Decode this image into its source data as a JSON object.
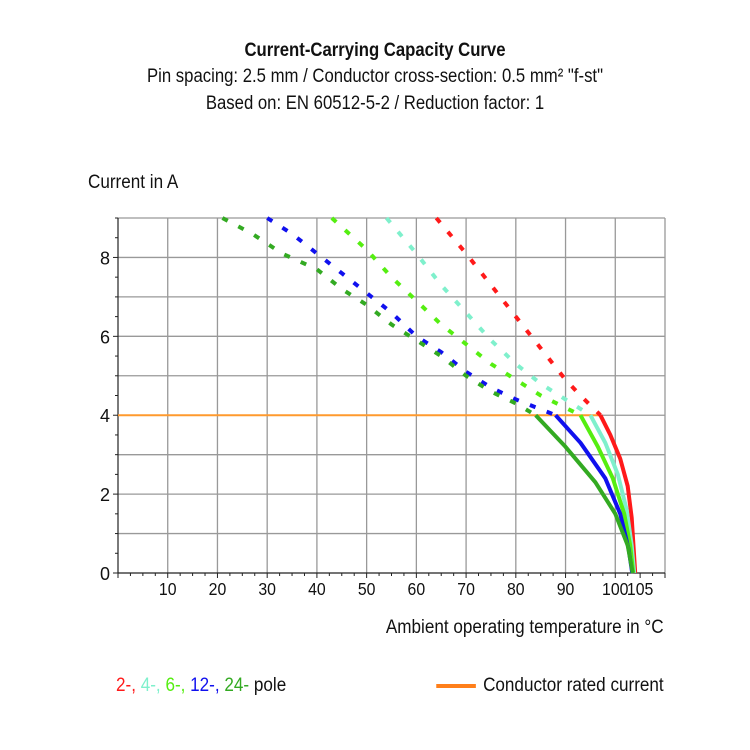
{
  "chart_data": {
    "type": "line",
    "title": "Current-Carrying Capacity Curve",
    "subtitle": [
      "Pin spacing: 2.5 mm / Conductor cross-section: 0.5 mm² \"f-st\"",
      "Based on: EN 60512-5-2 / Reduction factor: 1"
    ],
    "xlabel": "Ambient operating temperature in °C",
    "ylabel": "Current in A",
    "xlim": [
      0,
      110
    ],
    "ylim": [
      0,
      9
    ],
    "xticks": [
      10,
      20,
      30,
      40,
      50,
      60,
      70,
      80,
      90,
      100,
      105
    ],
    "yticks": [
      0,
      2,
      4,
      6,
      8
    ],
    "grid": true,
    "legend_placement": "bottom",
    "series": [
      {
        "pole": "2-",
        "color": "#ff1a1a",
        "dashed": [
          [
            64,
            9
          ],
          [
            70,
            8.1
          ],
          [
            75,
            7.3
          ],
          [
            80,
            6.5
          ],
          [
            85,
            5.7
          ],
          [
            90,
            4.9
          ],
          [
            93,
            4.5
          ],
          [
            97,
            4
          ]
        ],
        "solid": [
          [
            97,
            4
          ],
          [
            99,
            3.5
          ],
          [
            101,
            2.9
          ],
          [
            102.5,
            2.2
          ],
          [
            103.3,
            1.4
          ],
          [
            103.7,
            0.6
          ],
          [
            104,
            0
          ]
        ]
      },
      {
        "pole": "4-",
        "color": "#7ff0cc",
        "dashed": [
          [
            54,
            9
          ],
          [
            60,
            8.1
          ],
          [
            65,
            7.3
          ],
          [
            70,
            6.6
          ],
          [
            75,
            5.9
          ],
          [
            80,
            5.3
          ],
          [
            85,
            4.8
          ],
          [
            90,
            4.4
          ],
          [
            95,
            4
          ]
        ],
        "solid": [
          [
            95,
            4
          ],
          [
            98,
            3.3
          ],
          [
            100.5,
            2.5
          ],
          [
            102.3,
            1.6
          ],
          [
            103.3,
            0.7
          ],
          [
            103.8,
            0
          ]
        ]
      },
      {
        "pole": "6-",
        "color": "#55ee11",
        "dashed": [
          [
            43,
            9
          ],
          [
            50,
            8.2
          ],
          [
            55,
            7.5
          ],
          [
            60,
            6.9
          ],
          [
            65,
            6.3
          ],
          [
            70,
            5.8
          ],
          [
            75,
            5.3
          ],
          [
            80,
            4.9
          ],
          [
            85,
            4.5
          ],
          [
            93,
            4
          ]
        ],
        "solid": [
          [
            93,
            4
          ],
          [
            96.5,
            3.2
          ],
          [
            99.5,
            2.4
          ],
          [
            101.8,
            1.5
          ],
          [
            103,
            0.7
          ],
          [
            103.6,
            0
          ]
        ]
      },
      {
        "pole": "12-",
        "color": "#1010ee",
        "dashed": [
          [
            30,
            9
          ],
          [
            35,
            8.6
          ],
          [
            40,
            8.1
          ],
          [
            45,
            7.6
          ],
          [
            50,
            7.1
          ],
          [
            55,
            6.6
          ],
          [
            60,
            6.0
          ],
          [
            65,
            5.6
          ],
          [
            70,
            5.1
          ],
          [
            75,
            4.7
          ],
          [
            80,
            4.4
          ],
          [
            88,
            4
          ]
        ],
        "solid": [
          [
            88,
            4
          ],
          [
            93,
            3.3
          ],
          [
            98,
            2.4
          ],
          [
            101,
            1.5
          ],
          [
            102.7,
            0.6
          ],
          [
            103.4,
            0
          ]
        ]
      },
      {
        "pole": "24-",
        "color": "#33aa22",
        "dashed": [
          [
            21,
            9
          ],
          [
            27,
            8.6
          ],
          [
            33,
            8.1
          ],
          [
            40,
            7.7
          ],
          [
            45,
            7.2
          ],
          [
            50,
            6.8
          ],
          [
            55,
            6.3
          ],
          [
            60,
            5.9
          ],
          [
            65,
            5.5
          ],
          [
            70,
            5.0
          ],
          [
            75,
            4.6
          ],
          [
            80,
            4.3
          ],
          [
            84,
            4
          ]
        ],
        "solid": [
          [
            84,
            4
          ],
          [
            90,
            3.2
          ],
          [
            96,
            2.3
          ],
          [
            100,
            1.5
          ],
          [
            102.5,
            0.7
          ],
          [
            103.5,
            0
          ]
        ]
      }
    ],
    "rated_current": {
      "label": "Conductor rated current",
      "color": "#ff9a2e",
      "value": 4,
      "x_range": [
        0,
        97
      ]
    },
    "legend": {
      "pole_labels": [
        "2-,",
        "4-,",
        "6-,",
        "12-,",
        "24-"
      ],
      "pole_suffix": "pole"
    },
    "tick_labels_y": [
      "0",
      "2",
      "4",
      "6",
      "8"
    ],
    "tick_labels_x": [
      "10",
      "20",
      "30",
      "40",
      "50",
      "60",
      "70",
      "80",
      "90",
      "100",
      "105"
    ]
  }
}
